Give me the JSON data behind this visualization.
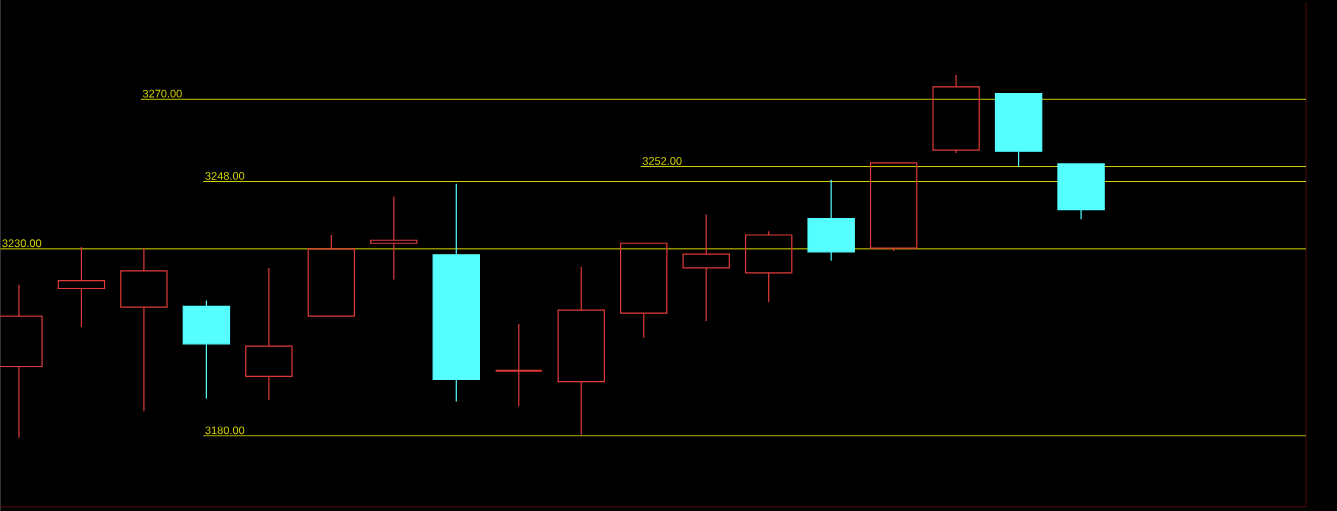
{
  "chart_data": {
    "type": "candlestick",
    "categories": [
      null,
      null,
      null,
      null,
      null,
      null,
      null,
      null,
      null,
      null,
      null,
      null,
      null,
      null,
      null,
      null,
      null,
      null
    ],
    "ohlc": [
      [
        3198.5,
        3220.4,
        3179.5,
        3212.0
      ],
      [
        3219.4,
        3230.5,
        3209.1,
        3221.5
      ],
      [
        3214.4,
        3230.2,
        3186.6,
        3224.1
      ],
      [
        3214.6,
        3216.2,
        3190.0,
        3204.6
      ],
      [
        3195.9,
        3224.9,
        3189.5,
        3204.0
      ],
      [
        3212.0,
        3233.7,
        3212.0,
        3230.0
      ],
      [
        3231.5,
        3244.0,
        3221.8,
        3232.3
      ],
      [
        3228.4,
        3247.4,
        3189.2,
        3195.1
      ],
      [
        3197.4,
        3209.9,
        3187.9,
        3197.4
      ],
      [
        3194.5,
        3225.2,
        3180.3,
        3213.6
      ],
      [
        3212.8,
        3231.5,
        3206.2,
        3231.5
      ],
      [
        3224.9,
        3239.2,
        3210.7,
        3228.6
      ],
      [
        3223.6,
        3234.7,
        3215.7,
        3233.7
      ],
      [
        3238.1,
        3248.5,
        3226.8,
        3229.2
      ],
      [
        3230.2,
        3253.0,
        3229.4,
        3253.0
      ],
      [
        3256.4,
        3276.5,
        3255.6,
        3273.3
      ],
      [
        3271.5,
        3271.5,
        3251.9,
        3256.1
      ],
      [
        3252.7,
        3252.7,
        3237.9,
        3240.5
      ]
    ],
    "colors": [
      "#e03a3a",
      "#e03a3a",
      "#e03a3a",
      "#55ffff",
      "#e03a3a",
      "#e03a3a",
      "#e03a3a",
      "#55ffff",
      "#e03a3a",
      "#e03a3a",
      "#e03a3a",
      "#e03a3a",
      "#e03a3a",
      "#55ffff",
      "#e03a3a",
      "#e03a3a",
      "#55ffff",
      "#55ffff"
    ],
    "ylim": [
      3161,
      3296
    ],
    "ref_lines": [
      {
        "axis": "y",
        "value": 3270,
        "label": "3270.00",
        "color": "#d8d800"
      },
      {
        "axis": "y",
        "value": 3248,
        "label": "3248.00",
        "color": "#d8d800"
      },
      {
        "axis": "y",
        "value": 3230,
        "label": "3230.00",
        "color": "#d8d800"
      },
      {
        "axis": "y",
        "value": 3180,
        "label": "3180.00",
        "color": "#d8d800"
      },
      {
        "axis": "y",
        "value": 3252,
        "label": "3252.00",
        "color": "#d8d800"
      }
    ]
  }
}
